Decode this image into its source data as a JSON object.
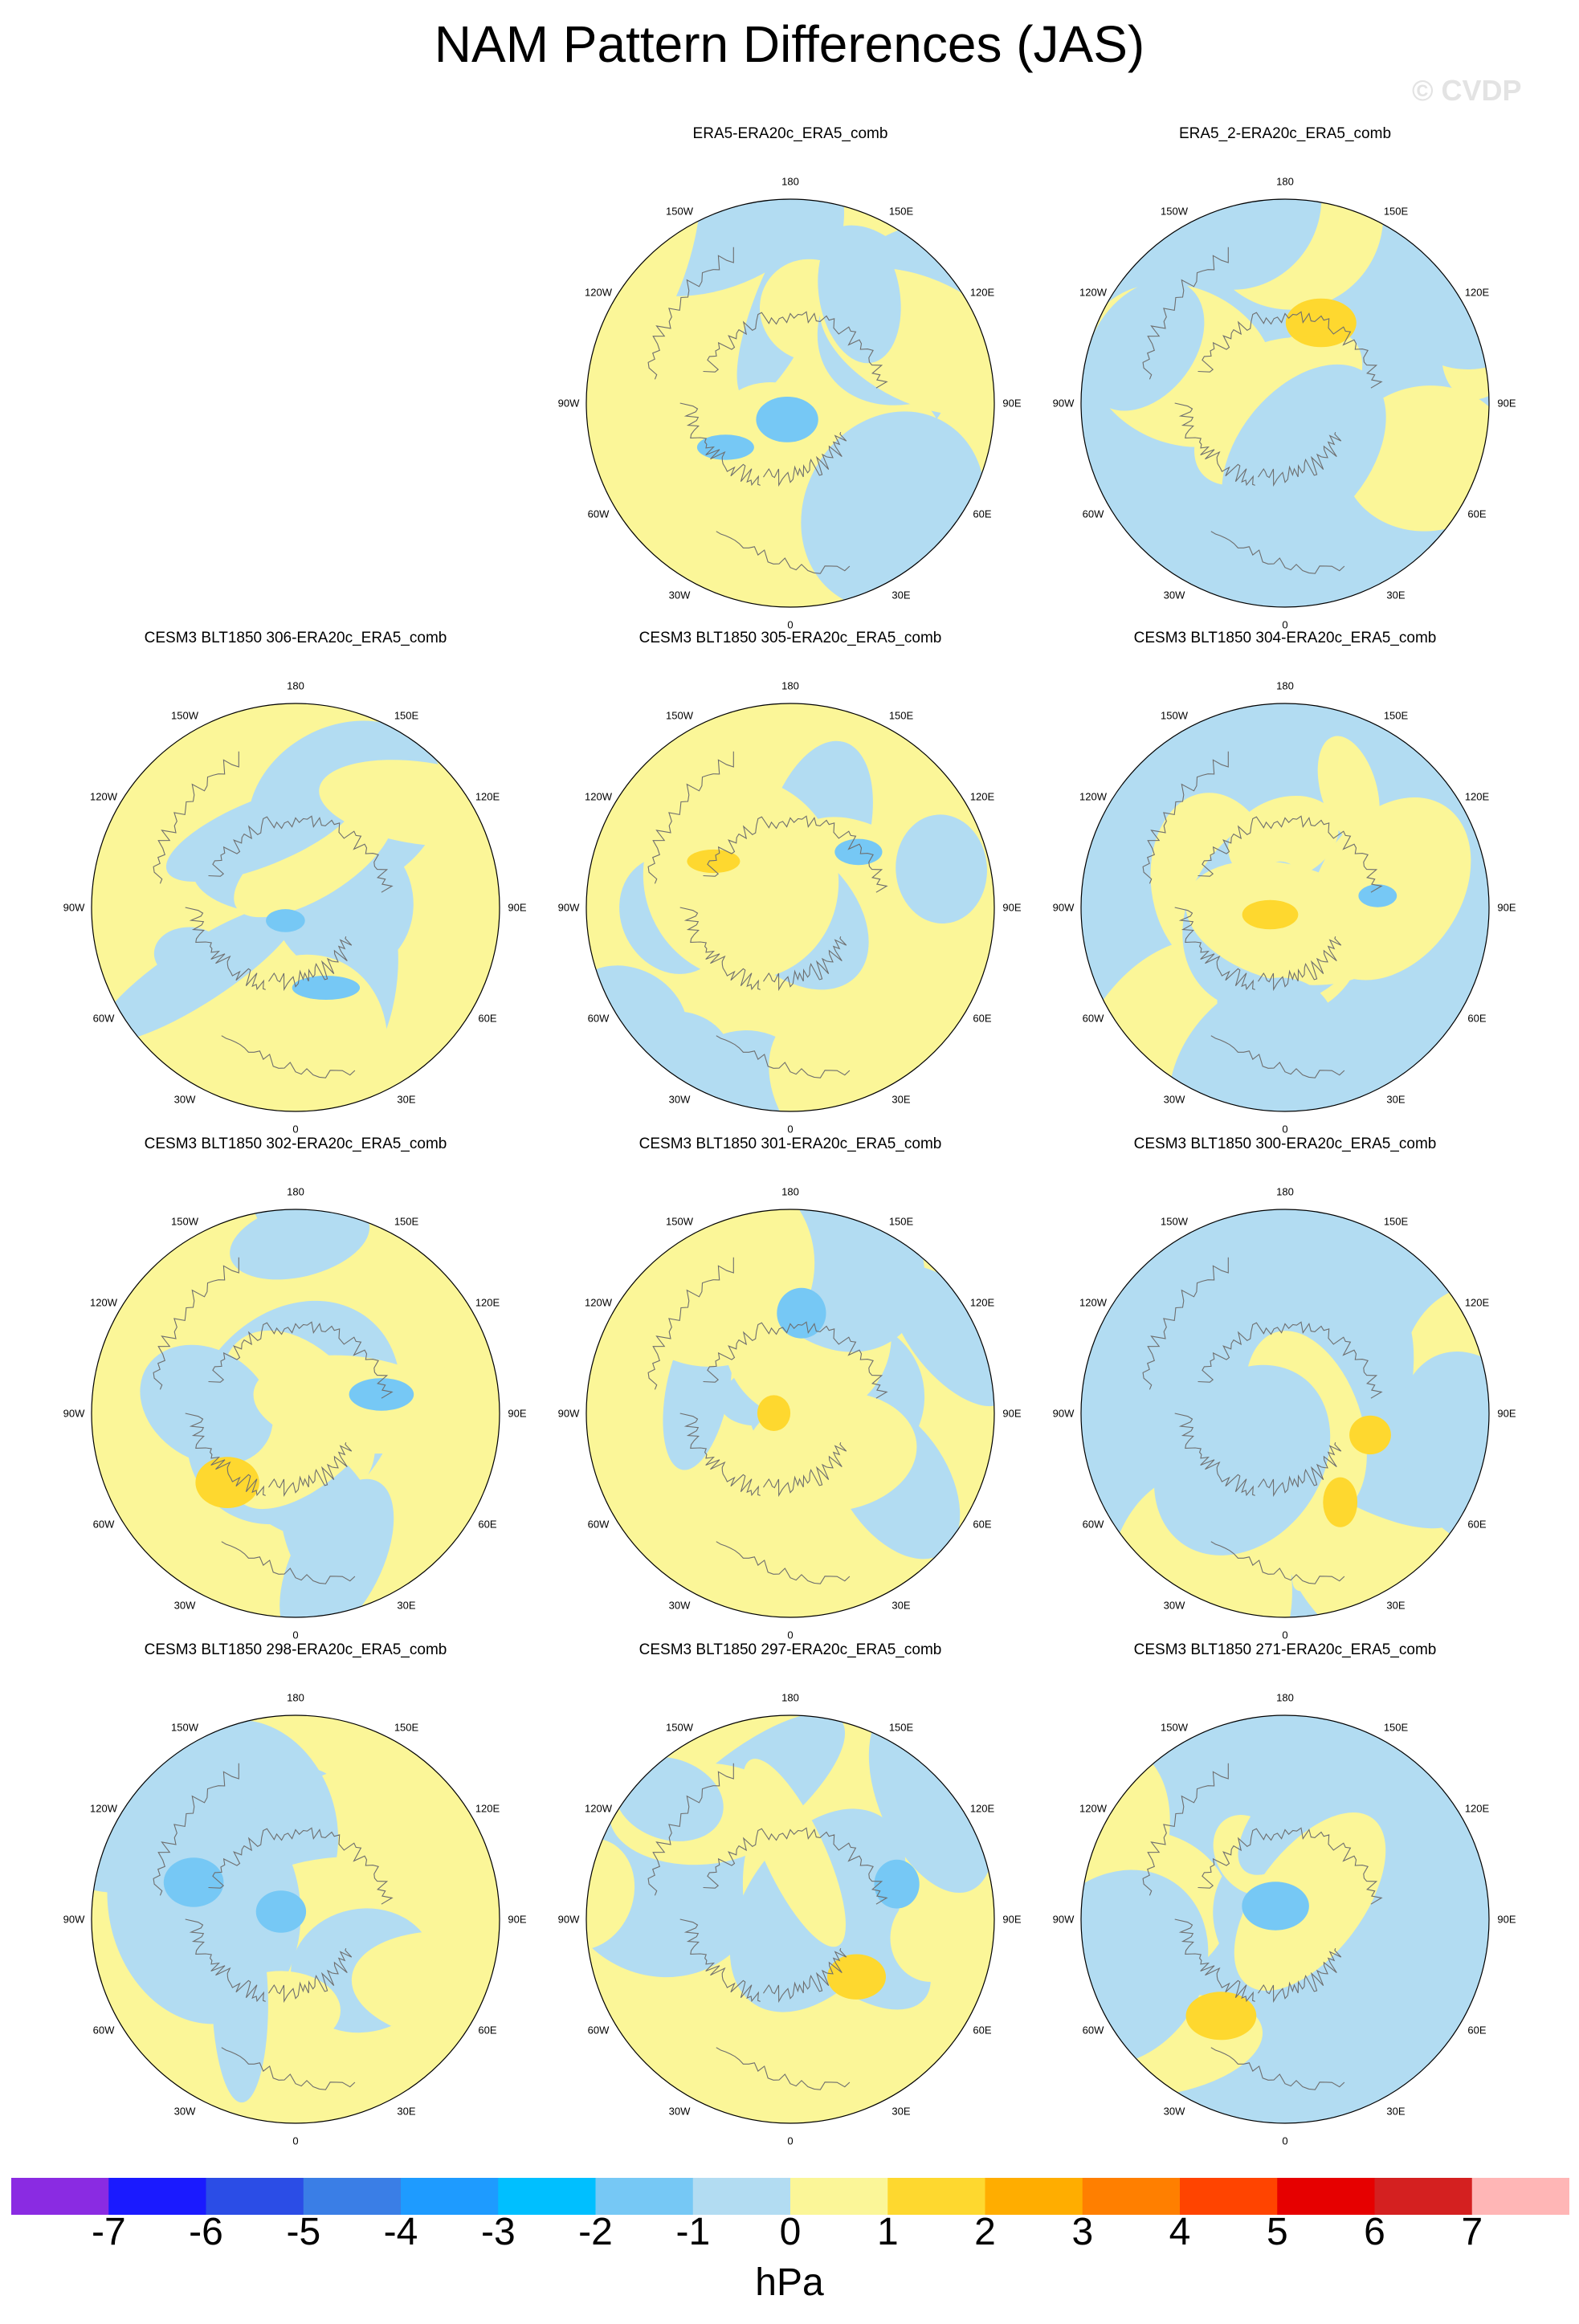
{
  "title": "NAM Pattern Differences (JAS)",
  "watermark": "© CVDP",
  "colors": {
    "levels": [
      "#8a2be2",
      "#1a1aff",
      "#2b4de6",
      "#3a7ee6",
      "#1e9bff",
      "#00bfff",
      "#76c8f5",
      "#b2dcf2",
      "#fbf698",
      "#fed82f",
      "#ffad00",
      "#ff7f00",
      "#ff4400",
      "#e60000",
      "#d42020",
      "#ffb6b6"
    ],
    "neutral_negative": "#b2dcf2",
    "neutral_positive": "#fbf698",
    "coast": "#6e6e6e"
  },
  "lon_labels": [
    "180",
    "150E",
    "120E",
    "90E",
    "60E",
    "30E",
    "0",
    "30W",
    "60W",
    "90W",
    "120W",
    "150W"
  ],
  "chart_data": [
    {
      "type": "heatmap",
      "title": "ERA5-ERA20c_ERA5_comb",
      "projection": "north polar stereographic",
      "grid": false
    },
    {
      "type": "heatmap",
      "title": "ERA5_2-ERA20c_ERA5_comb",
      "projection": "north polar stereographic",
      "grid": false
    },
    {
      "type": "heatmap",
      "title": "CESM3 BLT1850 306-ERA20c_ERA5_comb",
      "projection": "north polar stereographic",
      "grid": false
    },
    {
      "type": "heatmap",
      "title": "CESM3 BLT1850 305-ERA20c_ERA5_comb",
      "projection": "north polar stereographic",
      "grid": false
    },
    {
      "type": "heatmap",
      "title": "CESM3 BLT1850 304-ERA20c_ERA5_comb",
      "projection": "north polar stereographic",
      "grid": false
    },
    {
      "type": "heatmap",
      "title": "CESM3 BLT1850 302-ERA20c_ERA5_comb",
      "projection": "north polar stereographic",
      "grid": false
    },
    {
      "type": "heatmap",
      "title": "CESM3 BLT1850 301-ERA20c_ERA5_comb",
      "projection": "north polar stereographic",
      "grid": false
    },
    {
      "type": "heatmap",
      "title": "CESM3 BLT1850 300-ERA20c_ERA5_comb",
      "projection": "north polar stereographic",
      "grid": false
    },
    {
      "type": "heatmap",
      "title": "CESM3 BLT1850 298-ERA20c_ERA5_comb",
      "projection": "north polar stereographic",
      "grid": false
    },
    {
      "type": "heatmap",
      "title": "CESM3 BLT1850 297-ERA20c_ERA5_comb",
      "projection": "north polar stereographic",
      "grid": false
    },
    {
      "type": "heatmap",
      "title": "CESM3 BLT1850 271-ERA20c_ERA5_comb",
      "projection": "north polar stereographic",
      "grid": false
    }
  ],
  "colorbar": {
    "ticks": [
      "-7",
      "-6",
      "-5",
      "-4",
      "-3",
      "-2",
      "-1",
      "0",
      "1",
      "2",
      "3",
      "4",
      "5",
      "6",
      "7"
    ],
    "units": "hPa"
  }
}
